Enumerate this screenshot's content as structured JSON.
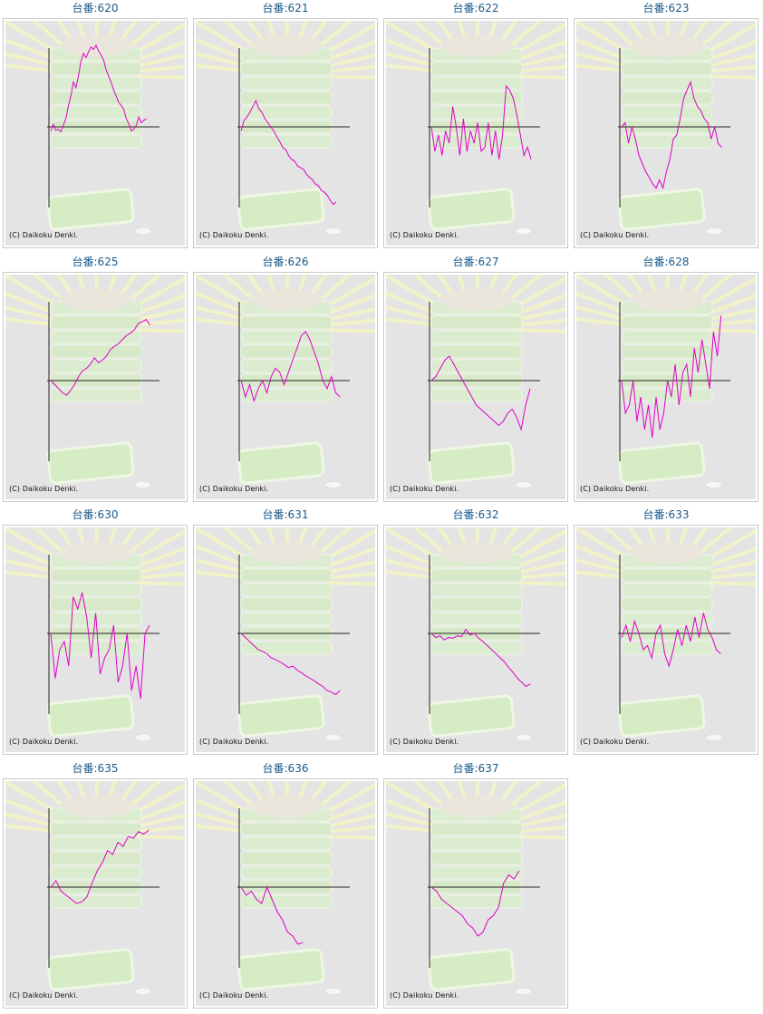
{
  "copyright": "(C) Daikoku Denki.",
  "title_prefix": "台番:",
  "line_color": "#e000c8",
  "machines": [
    {
      "label": "台番:620",
      "number": "620",
      "values": [
        -5,
        3,
        -4,
        -3,
        -6,
        2,
        10,
        25,
        38,
        55,
        48,
        62,
        80,
        90,
        85,
        92,
        98,
        95,
        100,
        93,
        88,
        82,
        70,
        62,
        55,
        45,
        38,
        30,
        26,
        22,
        10,
        4,
        -5,
        -3,
        2,
        12,
        5,
        8,
        10
      ]
    },
    {
      "label": "台番:621",
      "number": "621",
      "values": [
        -5,
        8,
        12,
        18,
        25,
        32,
        22,
        18,
        10,
        5,
        0,
        -5,
        -12,
        -18,
        -25,
        -28,
        -35,
        -40,
        -42,
        -48,
        -50,
        -52,
        -58,
        -62,
        -65,
        -70,
        -72,
        -78,
        -80,
        -84,
        -90,
        -95,
        -92
      ]
    },
    {
      "label": "台番:622",
      "number": "622",
      "values": [
        0,
        -30,
        -10,
        -35,
        -5,
        -20,
        25,
        0,
        -35,
        10,
        -30,
        -5,
        -20,
        5,
        -30,
        -25,
        5,
        -35,
        -5,
        -40,
        -10,
        50,
        45,
        35,
        15,
        -10,
        -35,
        -25,
        -40
      ]
    },
    {
      "label": "台番:623",
      "number": "623",
      "values": [
        0,
        5,
        -20,
        0,
        -15,
        -35,
        -45,
        -55,
        -62,
        -70,
        -75,
        -65,
        -75,
        -55,
        -40,
        -15,
        -10,
        10,
        35,
        45,
        55,
        35,
        25,
        20,
        10,
        5,
        -15,
        0,
        -20,
        -25
      ]
    },
    {
      "label": "台番:625",
      "number": "625",
      "values": [
        0,
        -5,
        -10,
        -15,
        -18,
        -12,
        -5,
        5,
        12,
        15,
        20,
        28,
        22,
        25,
        30,
        38,
        42,
        45,
        50,
        55,
        58,
        62,
        70,
        72,
        75,
        68
      ]
    },
    {
      "label": "台番:626",
      "number": "626",
      "values": [
        0,
        -20,
        -5,
        -25,
        -10,
        0,
        -15,
        5,
        15,
        10,
        -5,
        10,
        25,
        40,
        55,
        60,
        50,
        35,
        20,
        0,
        -10,
        5,
        -15,
        -20
      ]
    },
    {
      "label": "台番:627",
      "number": "627",
      "values": [
        0,
        5,
        15,
        25,
        30,
        20,
        10,
        0,
        -10,
        -20,
        -30,
        -35,
        -40,
        -45,
        -50,
        -55,
        -50,
        -40,
        -35,
        -45,
        -60,
        -30,
        -10
      ]
    },
    {
      "label": "台番:628",
      "number": "628",
      "values": [
        0,
        -40,
        -30,
        0,
        -50,
        -20,
        -60,
        -30,
        -70,
        -20,
        -60,
        -40,
        0,
        -20,
        20,
        -30,
        10,
        20,
        -20,
        40,
        10,
        50,
        20,
        -10,
        60,
        30,
        80
      ]
    },
    {
      "label": "台番:630",
      "number": "630",
      "values": [
        0,
        -55,
        -20,
        -10,
        -40,
        45,
        30,
        50,
        20,
        -30,
        25,
        -50,
        -30,
        -20,
        10,
        -60,
        -40,
        0,
        -70,
        -40,
        -80,
        0,
        10
      ]
    },
    {
      "label": "台番:631",
      "number": "631",
      "values": [
        0,
        -5,
        -10,
        -15,
        -20,
        -22,
        -25,
        -30,
        -32,
        -35,
        -38,
        -42,
        -40,
        -45,
        -48,
        -52,
        -55,
        -58,
        -62,
        -65,
        -70,
        -72,
        -75,
        -70
      ]
    },
    {
      "label": "台番:632",
      "number": "632",
      "values": [
        0,
        -5,
        -3,
        -8,
        -5,
        -6,
        -3,
        -4,
        5,
        -2,
        0,
        -6,
        -10,
        -15,
        -20,
        -25,
        -30,
        -35,
        -42,
        -48,
        -55,
        -60,
        -65,
        -62
      ]
    },
    {
      "label": "台番:633",
      "number": "633",
      "values": [
        -5,
        10,
        -10,
        15,
        0,
        -20,
        -15,
        -30,
        0,
        10,
        -25,
        -40,
        -20,
        5,
        -15,
        10,
        -10,
        20,
        -5,
        25,
        5,
        -5,
        -20,
        -25
      ]
    },
    {
      "label": "台番:635",
      "number": "635",
      "values": [
        0,
        8,
        -5,
        -10,
        -15,
        -20,
        -18,
        -12,
        5,
        20,
        30,
        45,
        40,
        55,
        50,
        62,
        60,
        68,
        65,
        70
      ]
    },
    {
      "label": "台番:636",
      "number": "636",
      "values": [
        0,
        -10,
        -5,
        -15,
        -20,
        0,
        -15,
        -30,
        -40,
        -55,
        -60,
        -70,
        -68
      ]
    },
    {
      "label": "台番:637",
      "number": "637",
      "values": [
        0,
        -5,
        -15,
        -20,
        -25,
        -30,
        -35,
        -45,
        -50,
        -60,
        -55,
        -40,
        -35,
        -25,
        5,
        15,
        10,
        20
      ]
    }
  ]
}
